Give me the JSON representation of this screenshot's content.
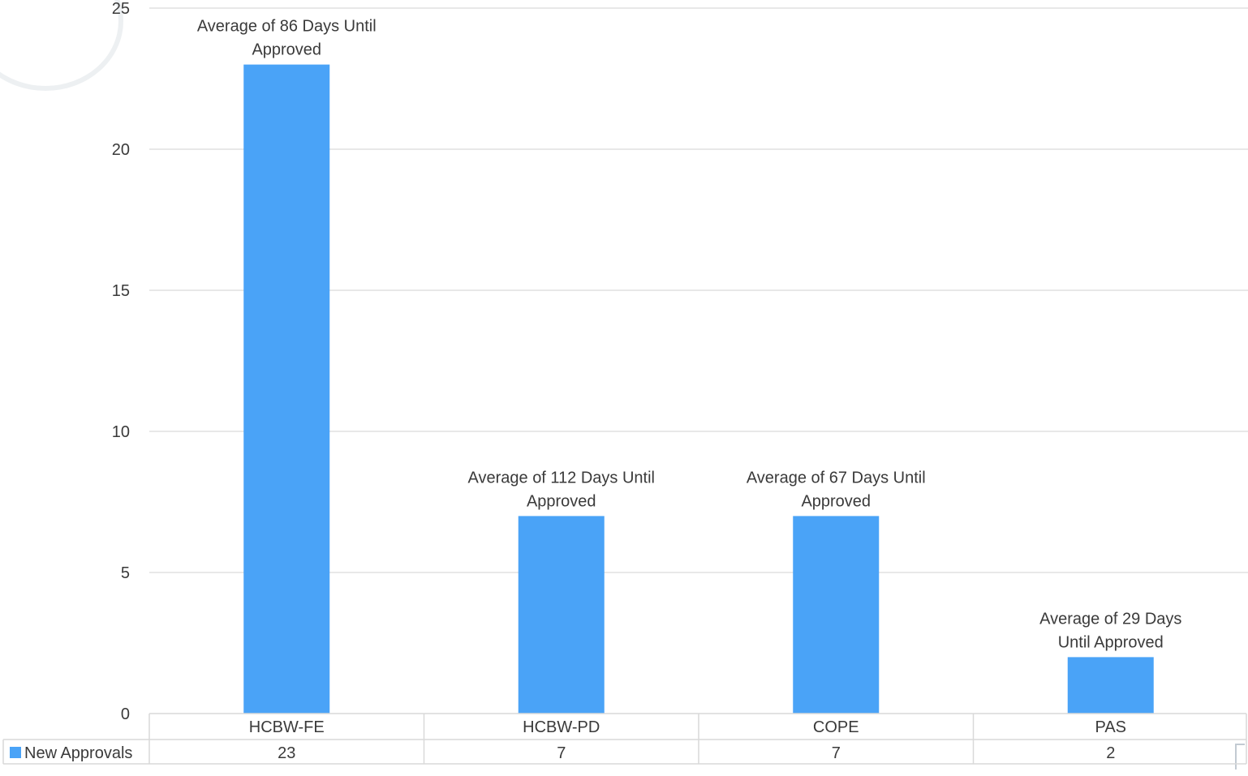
{
  "chart_data": {
    "type": "bar",
    "categories": [
      "HCBW-FE",
      "HCBW-PD",
      "COPE",
      "PAS"
    ],
    "series": [
      {
        "name": "New Approvals",
        "values": [
          23,
          7,
          7,
          2
        ],
        "color": "#4aa3f7"
      }
    ],
    "annotations": [
      [
        "Average of 86 Days Until",
        "Approved"
      ],
      [
        "Average of 112 Days Until",
        "Approved"
      ],
      [
        "Average of 67 Days Until",
        "Approved"
      ],
      [
        "Average of 29 Days",
        "Until Approved"
      ]
    ],
    "ylim": [
      0,
      25
    ],
    "yticks": [
      0,
      5,
      10,
      15,
      20,
      25
    ],
    "title": "",
    "xlabel": "",
    "ylabel": "",
    "grid": true,
    "legend": "data-table-left",
    "data_table": true,
    "colors": {
      "bar": "#4aa3f7",
      "grid": "#d9d9d9",
      "text": "#3a3a3a"
    }
  }
}
